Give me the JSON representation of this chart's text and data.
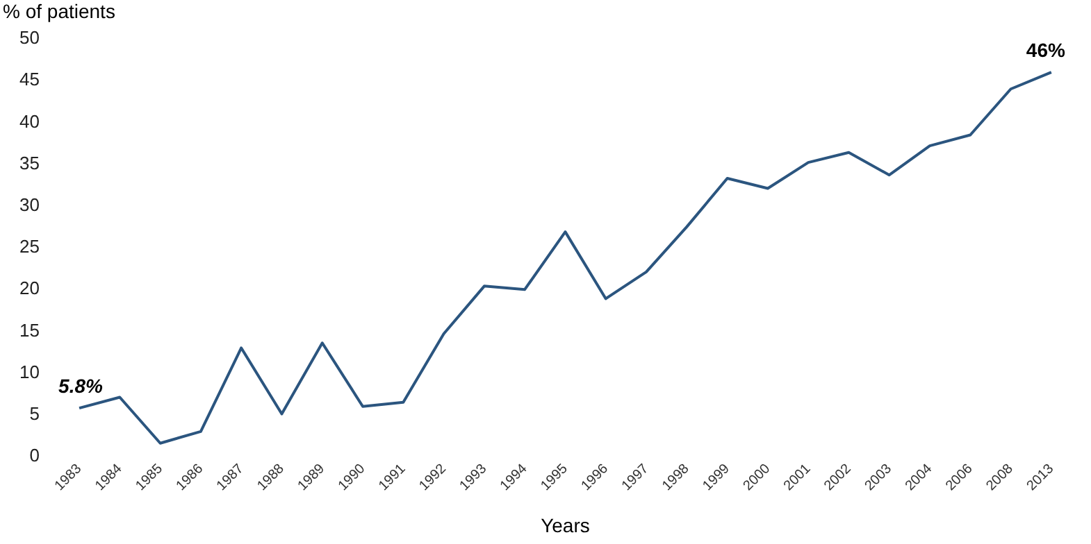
{
  "chart_data": {
    "type": "line",
    "ylabel": "% of patients",
    "xlabel": "Years",
    "categories": [
      "1983",
      "1984",
      "1985",
      "1986",
      "1987",
      "1988",
      "1989",
      "1990",
      "1991",
      "1992",
      "1993",
      "1994",
      "1995",
      "1996",
      "1997",
      "1998",
      "1999",
      "2000",
      "2001",
      "2002",
      "2003",
      "2004",
      "2006",
      "2008",
      "2013"
    ],
    "series": [
      {
        "color": "#2b557f",
        "values": [
          5.8,
          7.1,
          1.6,
          3.0,
          13.0,
          5.1,
          13.6,
          6.0,
          6.5,
          14.7,
          20.4,
          20.0,
          26.9,
          18.9,
          22.1,
          27.5,
          33.3,
          32.1,
          35.2,
          36.4,
          33.7,
          37.2,
          38.5,
          44.0,
          46
        ],
        "value_labels": [
          "5.8%",
          null,
          null,
          null,
          null,
          null,
          null,
          null,
          null,
          null,
          null,
          null,
          null,
          null,
          null,
          null,
          null,
          null,
          null,
          null,
          null,
          null,
          null,
          null,
          "46%"
        ]
      }
    ],
    "ylim": [
      0,
      50
    ],
    "yticks": [
      0,
      5,
      10,
      15,
      20,
      25,
      30,
      35,
      40,
      45,
      50
    ],
    "grid": false,
    "legend": false,
    "marker": "none",
    "line_style": "solid"
  }
}
